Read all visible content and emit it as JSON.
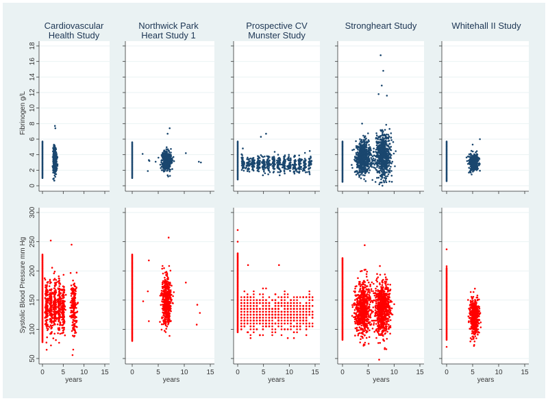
{
  "chart_data": {
    "type": "scatter",
    "layout": "2 rows x 5 columns small multiples",
    "columns": [
      {
        "title_lines": [
          "Cardiovascular",
          "Health Study"
        ]
      },
      {
        "title_lines": [
          "Northwick Park",
          "Heart Study 1"
        ]
      },
      {
        "title_lines": [
          "Prospective CV",
          "Munster Study"
        ]
      },
      {
        "title_lines": [
          "Strongheart Study"
        ]
      },
      {
        "title_lines": [
          "Whitehall II Study"
        ]
      }
    ],
    "xlabel": "years",
    "x_ticks": [
      "0",
      "5",
      "10",
      "15"
    ],
    "xlim": [
      0,
      15
    ],
    "rows": [
      {
        "ylabel": "Fibrinogen g/L",
        "ylim": [
          0,
          18
        ],
        "y_ticks": [
          "0",
          "2",
          "4",
          "6",
          "8",
          "10",
          "12",
          "14",
          "16",
          "18"
        ],
        "color": "#1a476f",
        "panels": [
          {
            "baseline": [
              1.0,
              5.7
            ],
            "clusters": [
              {
                "x": 3.0,
                "xsd": 0.22,
                "y": 3.3,
                "ysd": 0.85,
                "n": 320
              }
            ],
            "outliers": [
              [
                3.0,
                7.7
              ],
              [
                3.1,
                7.4
              ]
            ]
          },
          {
            "baseline": [
              1.0,
              5.6
            ],
            "clusters": [
              {
                "x": 6.6,
                "xsd": 0.45,
                "y": 3.2,
                "ysd": 0.6,
                "n": 450
              }
            ],
            "outliers": [
              [
                2.0,
                4.1
              ],
              [
                3.2,
                3.3
              ],
              [
                3.3,
                3.2
              ],
              [
                3.0,
                1.9
              ],
              [
                4.5,
                3.1
              ],
              [
                10.3,
                4.2
              ],
              [
                12.8,
                3.1
              ],
              [
                13.2,
                3.0
              ],
              [
                7.2,
                7.4
              ],
              [
                6.8,
                6.7
              ]
            ]
          },
          {
            "baseline": [
              0.8,
              5.7
            ],
            "bands": {
              "from": 1,
              "to": 14,
              "xsd": 0.18,
              "y": 2.8,
              "ysd": 0.5,
              "n": 45
            },
            "outliers": [
              [
                4.5,
                6.3
              ],
              [
                5.5,
                6.7
              ],
              [
                1.0,
                4.8
              ]
            ]
          },
          {
            "baseline": [
              0.5,
              5.7
            ],
            "clusters": [
              {
                "x": 4.0,
                "xsd": 0.75,
                "y": 3.6,
                "ysd": 0.95,
                "n": 600
              },
              {
                "x": 7.9,
                "xsd": 0.75,
                "y": 3.9,
                "ysd": 1.4,
                "n": 650
              }
            ],
            "outliers": [
              [
                7.4,
                16.8
              ],
              [
                7.9,
                14.8
              ],
              [
                7.6,
                12.9
              ],
              [
                7.0,
                11.8
              ],
              [
                8.6,
                11.6
              ],
              [
                3.8,
                8.0
              ]
            ]
          },
          {
            "baseline": [
              0.6,
              5.7
            ],
            "clusters": [
              {
                "x": 5.2,
                "xsd": 0.45,
                "y": 3.0,
                "ysd": 0.55,
                "n": 320
              }
            ],
            "outliers": [
              [
                6.4,
                6.0
              ],
              [
                5.0,
                5.3
              ]
            ]
          }
        ]
      },
      {
        "ylabel": "Systolic Blood Pressure mm Hg",
        "ylim": [
          50,
          300
        ],
        "y_ticks": [
          "50",
          "100",
          "150",
          "200",
          "250",
          "300"
        ],
        "color": "#ff0000",
        "panels": [
          {
            "baseline": [
              78,
              228
            ],
            "bands": {
              "from": 1,
              "to": 5,
              "xsd": 0.2,
              "y": 138,
              "ysd": 22,
              "n": 130
            },
            "clusters": [
              {
                "x": 7.5,
                "xsd": 0.35,
                "y": 138,
                "ysd": 22,
                "n": 200
              }
            ],
            "outliers": [
              [
                2.0,
                252
              ],
              [
                7.0,
                245
              ],
              [
                1.0,
                65
              ]
            ]
          },
          {
            "baseline": [
              80,
              228
            ],
            "clusters": [
              {
                "x": 6.6,
                "xsd": 0.45,
                "y": 145,
                "ysd": 22,
                "n": 500
              }
            ],
            "outliers": [
              [
                2.1,
                148
              ],
              [
                3.2,
                218
              ],
              [
                3.0,
                165
              ],
              [
                3.2,
                114
              ],
              [
                10.3,
                180
              ],
              [
                12.4,
                108
              ],
              [
                13.0,
                128
              ],
              [
                12.5,
                142
              ],
              [
                7.0,
                257
              ]
            ]
          },
          {
            "baseline": [
              95,
              230
            ],
            "grid": {
              "from": 0.7,
              "to": 14.2,
              "step": 0.6,
              "ystep": 5,
              "y": 128,
              "ysd": 15,
              "n": 900
            },
            "outliers": [
              [
                0,
                270
              ],
              [
                0,
                250
              ],
              [
                2,
                210
              ],
              [
                8,
                210
              ],
              [
                2,
                95
              ]
            ]
          },
          {
            "baseline": [
              82,
              222
            ],
            "clusters": [
              {
                "x": 4.0,
                "xsd": 0.75,
                "y": 135,
                "ysd": 22,
                "n": 700
              },
              {
                "x": 7.8,
                "xsd": 0.75,
                "y": 135,
                "ysd": 22,
                "n": 700
              }
            ],
            "outliers": [
              [
                4.3,
                244
              ],
              [
                7.1,
                48
              ],
              [
                8.5,
                66
              ],
              [
                8.2,
                68
              ]
            ]
          },
          {
            "baseline": [
              82,
              205
            ],
            "clusters": [
              {
                "x": 5.3,
                "xsd": 0.45,
                "y": 123,
                "ysd": 16,
                "n": 450
              }
            ],
            "outliers": [
              [
                0,
                237
              ],
              [
                0,
                208
              ],
              [
                0,
                70
              ]
            ]
          }
        ]
      }
    ]
  }
}
